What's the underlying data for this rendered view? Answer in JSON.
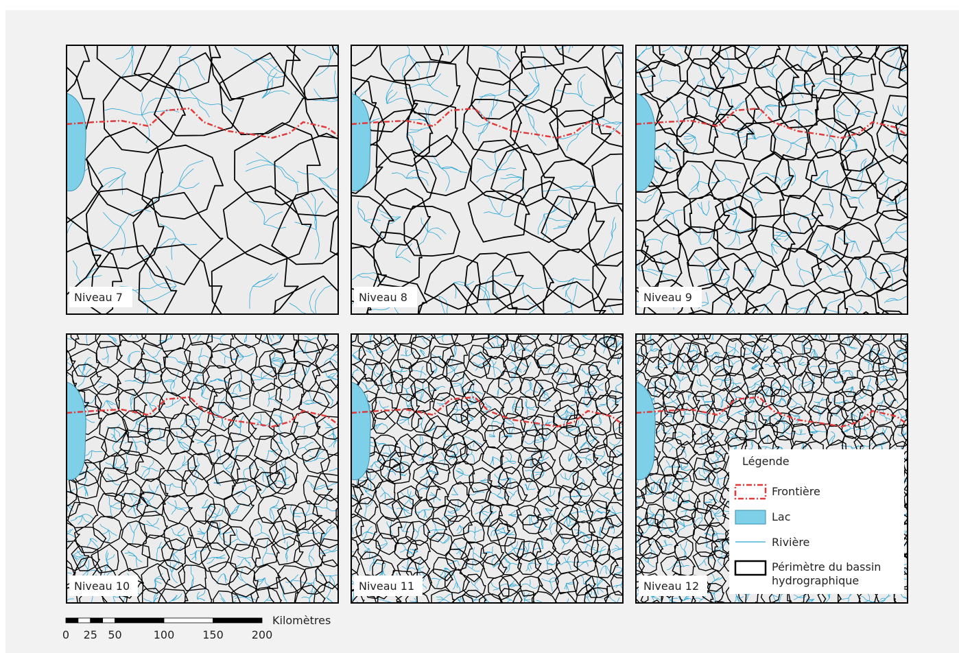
{
  "panels": [
    {
      "label": "Niveau 7"
    },
    {
      "label": "Niveau 8"
    },
    {
      "label": "Niveau 9"
    },
    {
      "label": "Niveau 10"
    },
    {
      "label": "Niveau 11"
    },
    {
      "label": "Niveau 12"
    }
  ],
  "legend": {
    "title": "Légende",
    "items": [
      "Frontière",
      "Lac",
      "Rivière",
      "Périmètre du bassin hydrographique"
    ]
  },
  "scale_bar": {
    "unit": "Kilomètres",
    "ticks": [
      0,
      25,
      50,
      100,
      150,
      200
    ]
  }
}
